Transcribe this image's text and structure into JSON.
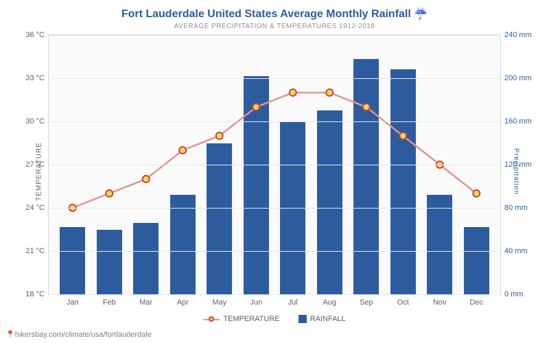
{
  "title": "Fort Lauderdale United States Average Monthly Rainfall ☔",
  "subtitle": "AVERAGE PRECIPITATION & TEMPERATURES 1912-2018",
  "attribution": "hikersbay.com/climate/usa/fortlauderdale",
  "chart": {
    "type": "combo-bar-line",
    "background_color": "#fafafa",
    "grid_color": "#e8e8e8",
    "left_axis": {
      "title": "TEMPERATURE",
      "color": "#606060",
      "min": 18,
      "max": 36,
      "ticks": [
        18,
        21,
        24,
        27,
        30,
        33,
        36
      ],
      "tick_suffix": " °C",
      "title_fontsize": 10,
      "label_fontsize": 11
    },
    "right_axis": {
      "title": "Precipitation",
      "color": "#2d5c9e",
      "min": 0,
      "max": 240,
      "ticks": [
        0,
        40,
        80,
        120,
        160,
        200,
        240
      ],
      "tick_suffix": " mm",
      "title_fontsize": 10,
      "label_fontsize": 11
    },
    "categories": [
      "Jan",
      "Feb",
      "Mar",
      "Apr",
      "May",
      "Jun",
      "Jul",
      "Aug",
      "Sep",
      "Oct",
      "Nov",
      "Dec"
    ],
    "rainfall": {
      "type": "bar",
      "label": "RAINFALL",
      "values": [
        62,
        60,
        66,
        92,
        140,
        202,
        160,
        170,
        218,
        208,
        92,
        62
      ],
      "bar_color": "#2d5c9e",
      "bar_width": 0.7
    },
    "temperature": {
      "type": "line",
      "label": "TEMPERATURE",
      "values": [
        24.0,
        25.0,
        26.0,
        28.0,
        29.0,
        31.0,
        32.0,
        32.0,
        31.0,
        29.0,
        27.0,
        25.0
      ],
      "line_color": "#e7938c",
      "line_width": 2.5,
      "marker_fill": "#ffd659",
      "marker_stroke": "#c0483a",
      "marker_radius": 5
    },
    "title_color": "#2d5c9e",
    "title_fontsize": 16,
    "subtitle_color": "#909090",
    "subtitle_fontsize": 10,
    "x_label_fontsize": 11,
    "x_label_color": "#606060"
  },
  "legend": {
    "items": [
      {
        "label": "TEMPERATURE",
        "swatch": "line"
      },
      {
        "label": "RAINFALL",
        "swatch": "bar"
      }
    ]
  }
}
